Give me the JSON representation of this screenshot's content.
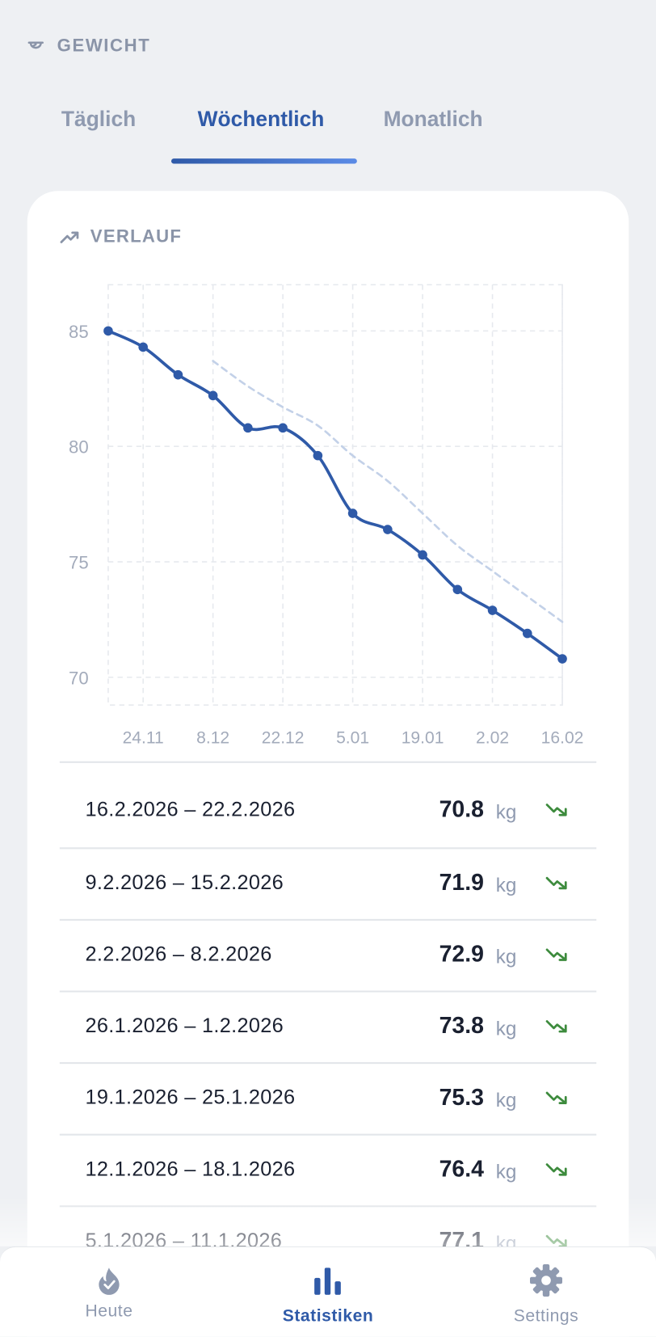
{
  "header": {
    "title": "GEWICHT"
  },
  "tabs": [
    "Täglich",
    "Wöchentlich",
    "Monatlich"
  ],
  "card": {
    "title": "VERLAUF"
  },
  "chart_data": {
    "type": "line",
    "categories": [
      null,
      "24.11",
      null,
      "8.12",
      null,
      "22.12",
      null,
      "5.01",
      null,
      "19.01",
      null,
      "2.02",
      null,
      "16.02"
    ],
    "series": [
      {
        "color": "#2f5aa8",
        "values": [
          85.0,
          84.3,
          83.1,
          82.2,
          80.8,
          80.8,
          79.6,
          77.1,
          76.4,
          75.3,
          73.8,
          72.9,
          71.9,
          70.8
        ]
      },
      {
        "color": "#c3d1e8",
        "style": "dashed",
        "values": [
          null,
          null,
          null,
          83.7,
          82.6,
          81.7,
          80.9,
          79.6,
          78.5,
          77.1,
          75.7,
          74.6,
          73.5,
          72.4
        ]
      }
    ],
    "ylim": [
      68.8,
      87
    ],
    "yticks": [
      70,
      75,
      80,
      85
    ],
    "grid": true
  },
  "list": {
    "unit": "kg",
    "rows": [
      {
        "range": "16.2.2026 – 22.2.2026",
        "value": 70.8
      },
      {
        "range": "9.2.2026 – 15.2.2026",
        "value": 71.9
      },
      {
        "range": "2.2.2026 – 8.2.2026",
        "value": 72.9
      },
      {
        "range": "26.1.2026 – 1.2.2026",
        "value": 73.8
      },
      {
        "range": "19.1.2026 – 25.1.2026",
        "value": 75.3
      },
      {
        "range": "12.1.2026 – 18.1.2026",
        "value": 76.4
      },
      {
        "range": "5.1.2026 – 11.1.2026",
        "value": 77.1
      }
    ]
  },
  "nav": [
    "Heute",
    "Statistiken",
    "Settings"
  ]
}
